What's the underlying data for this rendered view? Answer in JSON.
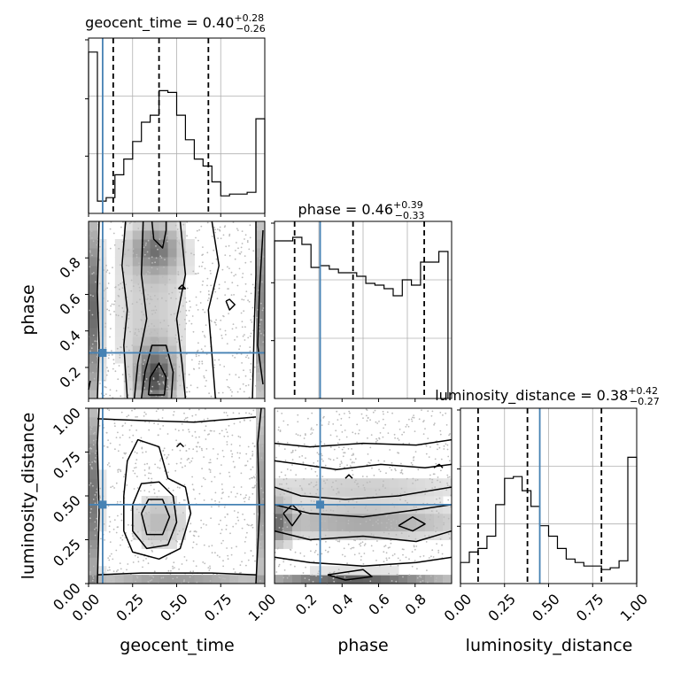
{
  "chart_data": {
    "type": "corner",
    "parameters": [
      "geocent_time",
      "phase",
      "luminosity_distance"
    ],
    "truths": {
      "geocent_time": 0.08,
      "phase": 0.28,
      "luminosity_distance": 0.45
    },
    "titles": [
      {
        "param": "geocent_time",
        "text": "geocent_time = 0.40",
        "sup": "+0.28",
        "sub": "−0.26"
      },
      {
        "param": "phase",
        "text": "phase = 0.46",
        "sup": "+0.39",
        "sub": "−0.33"
      },
      {
        "param": "luminosity_distance",
        "text": "luminosity_distance = 0.38",
        "sup": "+0.42",
        "sub": "−0.27"
      }
    ],
    "ticks": {
      "geocent_time": [
        "0.00",
        "0.25",
        "0.50",
        "0.75",
        "1.00"
      ],
      "phase": [
        "0.2",
        "0.4",
        "0.6",
        "0.8"
      ],
      "luminosity_distance": [
        "0.00",
        "0.25",
        "0.50",
        "0.75",
        "1.00"
      ]
    },
    "axis_ranges": {
      "geocent_time": [
        0,
        1
      ],
      "phase": [
        0.03,
        1.0
      ],
      "luminosity_distance": [
        0,
        1
      ]
    },
    "histograms": {
      "geocent_time": {
        "quantiles": [
          0.14,
          0.4,
          0.68
        ],
        "bins": [
          0.0,
          0.05,
          0.1,
          0.15,
          0.2,
          0.25,
          0.3,
          0.35,
          0.4,
          0.45,
          0.5,
          0.55,
          0.6,
          0.65,
          0.7,
          0.75,
          0.8,
          0.85,
          0.9,
          0.95,
          1.0
        ],
        "values": [
          0.92,
          0.07,
          0.09,
          0.22,
          0.31,
          0.41,
          0.52,
          0.56,
          0.7,
          0.69,
          0.56,
          0.42,
          0.31,
          0.27,
          0.18,
          0.1,
          0.11,
          0.11,
          0.12,
          0.54
        ]
      },
      "phase": {
        "quantiles": [
          0.14,
          0.46,
          0.85
        ],
        "bins": [
          0.03,
          0.08,
          0.13,
          0.18,
          0.23,
          0.28,
          0.33,
          0.38,
          0.43,
          0.48,
          0.53,
          0.58,
          0.63,
          0.68,
          0.73,
          0.78,
          0.83,
          0.88,
          0.93,
          0.98
        ],
        "values": [
          0.89,
          0.89,
          0.91,
          0.87,
          0.74,
          0.75,
          0.73,
          0.71,
          0.71,
          0.69,
          0.65,
          0.64,
          0.62,
          0.58,
          0.67,
          0.64,
          0.77,
          0.77,
          0.83
        ]
      },
      "luminosity_distance": {
        "quantiles": [
          0.1,
          0.38,
          0.8
        ],
        "bins": [
          0.0,
          0.05,
          0.1,
          0.15,
          0.2,
          0.25,
          0.3,
          0.35,
          0.4,
          0.45,
          0.5,
          0.55,
          0.6,
          0.65,
          0.7,
          0.75,
          0.8,
          0.85,
          0.9,
          0.95,
          1.0
        ],
        "values": [
          0.12,
          0.18,
          0.2,
          0.27,
          0.45,
          0.6,
          0.61,
          0.53,
          0.44,
          0.33,
          0.27,
          0.2,
          0.14,
          0.12,
          0.1,
          0.1,
          0.08,
          0.09,
          0.13,
          0.72
        ]
      }
    },
    "grid": true,
    "xlabel_bottom": [
      "geocent_time",
      "phase",
      "luminosity_distance"
    ],
    "ylabel_left": [
      "phase",
      "luminosity_distance"
    ]
  }
}
